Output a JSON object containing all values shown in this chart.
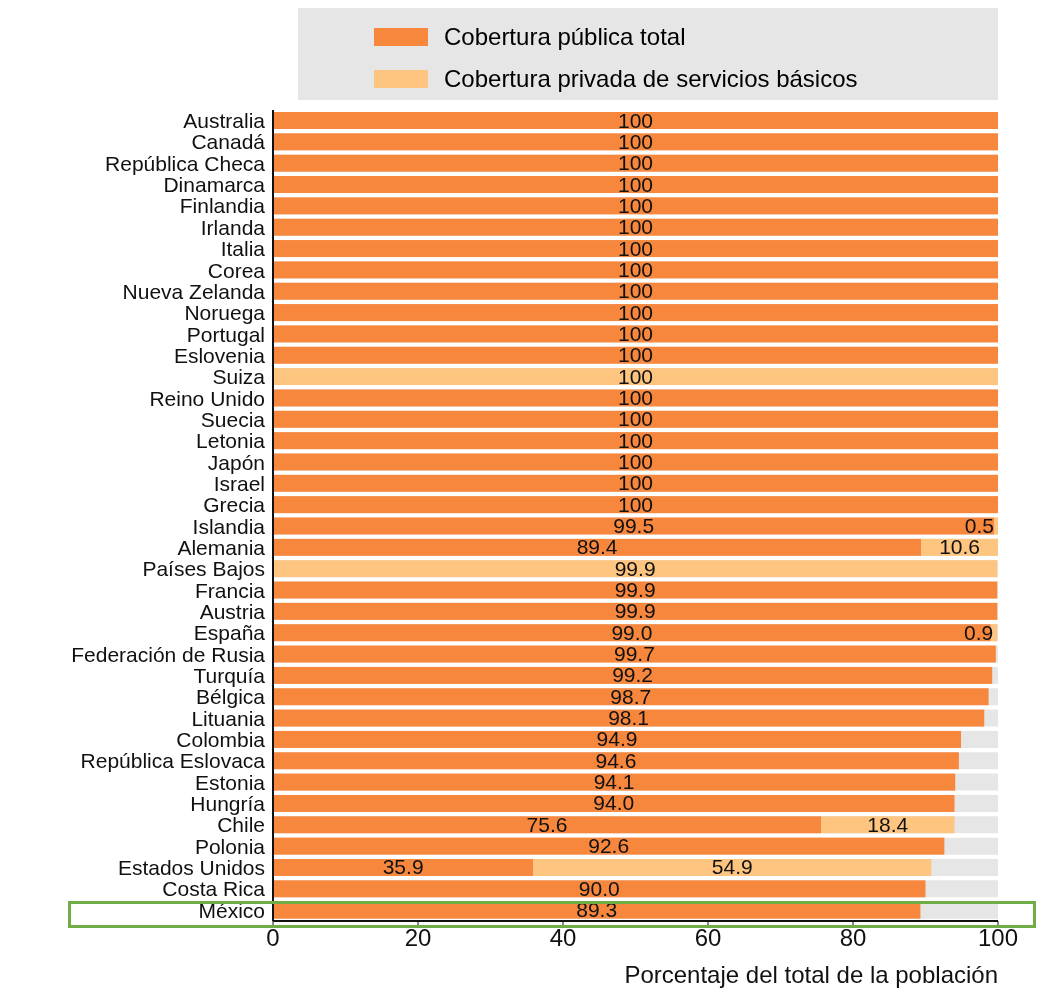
{
  "chart_data": {
    "type": "bar",
    "orientation": "horizontal",
    "stacked": true,
    "xlabel": "Porcentaje del total de la población",
    "legend": "top right",
    "grid": false,
    "categories": [
      "Australia",
      "Canadá",
      "República Checa",
      "Dinamarca",
      "Finlandia",
      "Irlanda",
      "Italia",
      "Corea",
      "Nueva Zelanda",
      "Noruega",
      "Portugal",
      "Eslovenia",
      "Suiza",
      "Reino Unido",
      "Suecia",
      "Letonia",
      "Japón",
      "Israel",
      "Grecia",
      "Islandia",
      "Alemania",
      "Países Bajos",
      "Francia",
      "Austria",
      "España",
      "Federación de Rusia",
      "Turquía",
      "Bélgica",
      "Lituania",
      "Colombia",
      "República Eslovaca",
      "Estonia",
      "Hungría",
      "Chile",
      "Polonia",
      "Estados Unidos",
      "Costa Rica",
      "México"
    ],
    "xlim": [
      0,
      100
    ],
    "xticks": [
      0,
      20,
      40,
      60,
      80,
      100
    ],
    "series": [
      {
        "name": "Cobertura pública total",
        "color": "#f7873c",
        "values": [
          100,
          100,
          100,
          100,
          100,
          100,
          100,
          100,
          100,
          100,
          100,
          100,
          null,
          100,
          100,
          100,
          100,
          100,
          100,
          99.5,
          89.4,
          null,
          99.9,
          99.9,
          99.0,
          99.7,
          99.2,
          98.7,
          98.1,
          94.9,
          94.6,
          94.1,
          94.0,
          75.6,
          92.6,
          35.9,
          90.0,
          89.3
        ],
        "value_labels": [
          "100",
          "100",
          "100",
          "100",
          "100",
          "100",
          "100",
          "100",
          "100",
          "100",
          "100",
          "100",
          null,
          "100",
          "100",
          "100",
          "100",
          "100",
          "100",
          "99.5",
          "89.4",
          null,
          "99.9",
          "99.9",
          "99.0",
          "99.7",
          "99.2",
          "98.7",
          "98.1",
          "94.9",
          "94.6",
          "94.1",
          "94.0",
          "75.6",
          "92.6",
          "35.9",
          "90.0",
          "89.3"
        ]
      },
      {
        "name": "Cobertura privada de servicios básicos",
        "color": "#fdc57f",
        "values": [
          null,
          null,
          null,
          null,
          null,
          null,
          null,
          null,
          null,
          null,
          null,
          null,
          100,
          null,
          null,
          null,
          null,
          null,
          null,
          0.5,
          10.6,
          99.9,
          null,
          null,
          0.9,
          null,
          null,
          null,
          null,
          null,
          null,
          null,
          null,
          18.4,
          null,
          54.9,
          null,
          null
        ],
        "value_labels": [
          null,
          null,
          null,
          null,
          null,
          null,
          null,
          null,
          null,
          null,
          null,
          null,
          "100",
          null,
          null,
          null,
          null,
          null,
          null,
          "0.5",
          "10.6",
          "99.9",
          null,
          null,
          "0.9",
          null,
          null,
          null,
          null,
          null,
          null,
          null,
          null,
          "18.4",
          null,
          "54.9",
          null,
          null
        ]
      }
    ]
  }
}
